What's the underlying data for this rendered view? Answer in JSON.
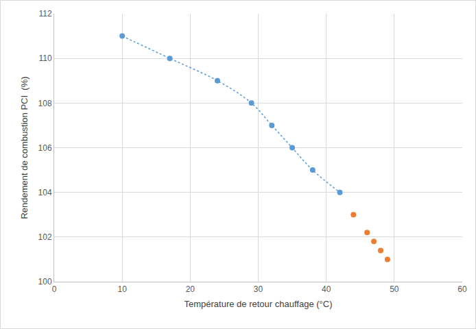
{
  "chart_data": {
    "type": "scatter",
    "x_label": "Température de retour chauffage (°C)",
    "y_label": "Rendement de combustion PCI  (%)",
    "series": [
      {
        "color": "#5b9bd5",
        "marker": "circle",
        "line_style": "dotted",
        "x": [
          10,
          17,
          24,
          29,
          32,
          35,
          38,
          42
        ],
        "values": [
          111,
          110,
          109,
          108,
          107,
          106,
          105,
          104
        ]
      },
      {
        "color": "#ed7d31",
        "marker": "circle",
        "x": [
          44,
          46,
          47,
          48,
          49
        ],
        "values": [
          103,
          102.2,
          101.8,
          101.4,
          101
        ]
      }
    ],
    "xlim": [
      0,
      60
    ],
    "xticks": [
      0,
      10,
      20,
      30,
      40,
      50,
      60
    ],
    "ylim": [
      100,
      112
    ],
    "yticks": [
      100,
      102,
      104,
      106,
      108,
      110,
      112
    ],
    "grid": true
  }
}
